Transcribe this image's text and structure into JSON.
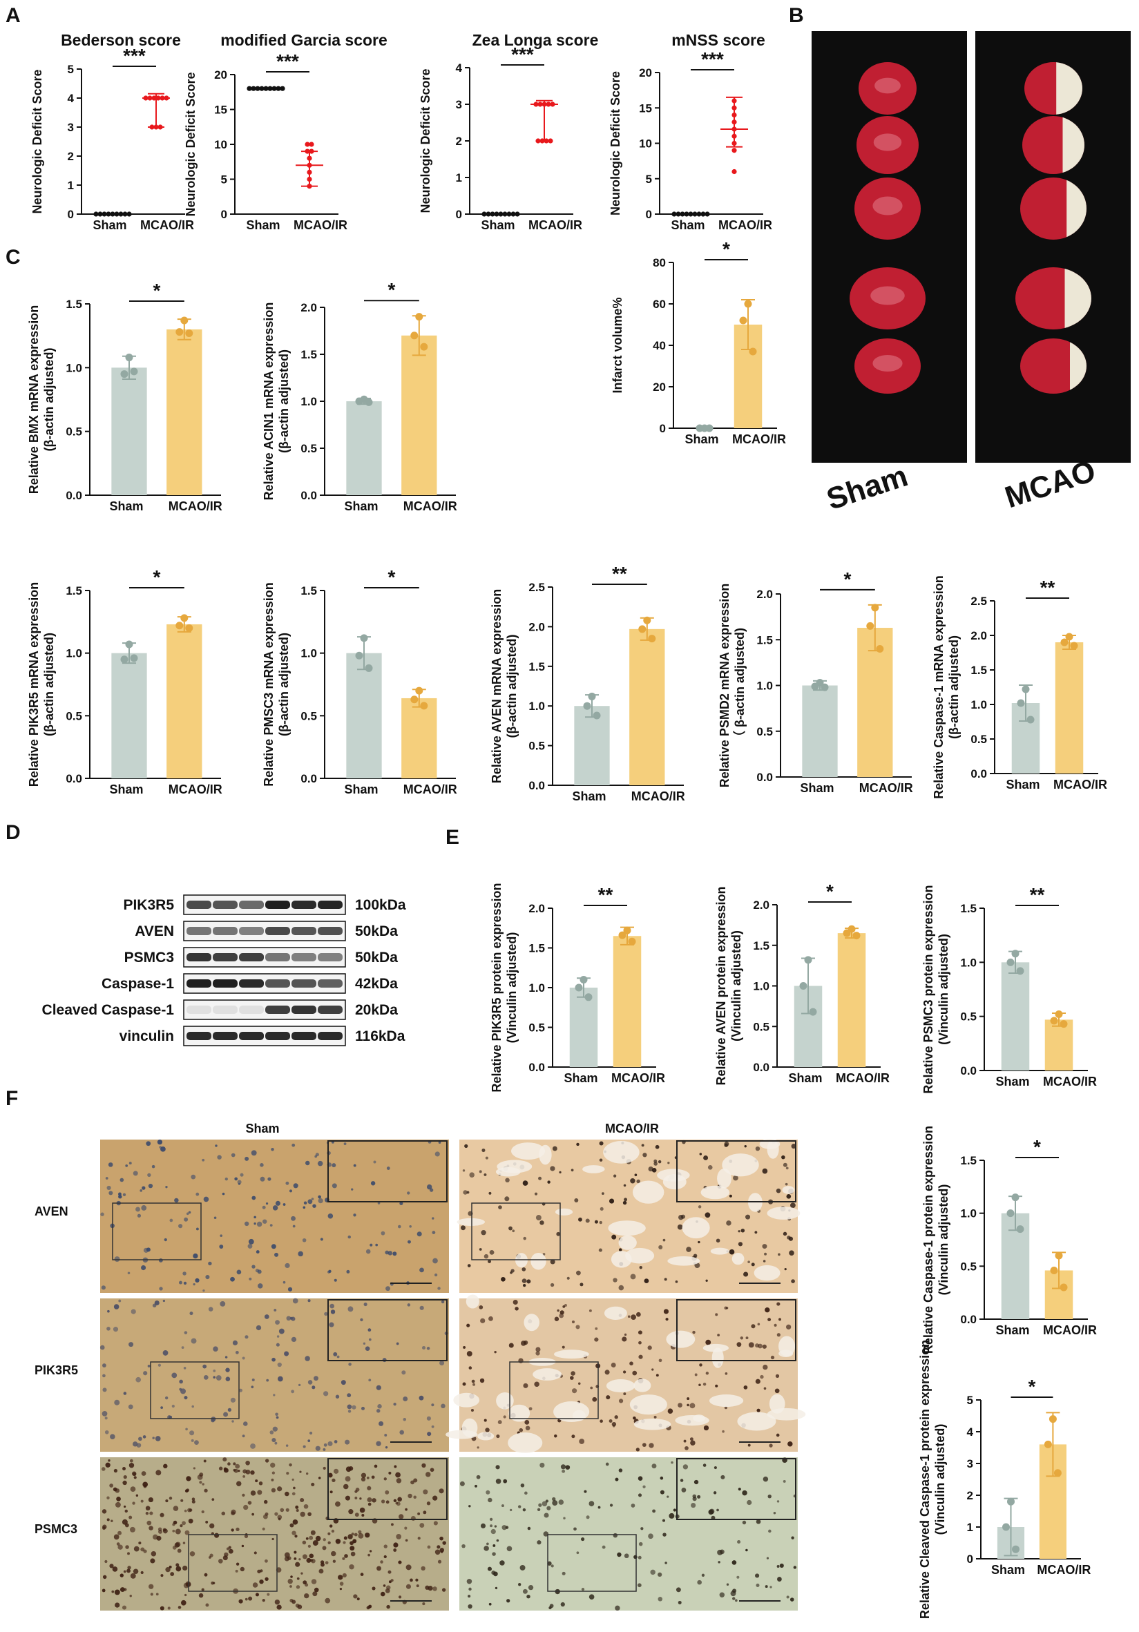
{
  "panel_labels": {
    "A": "A",
    "B": "B",
    "C": "C",
    "D": "D",
    "E": "E",
    "F": "F"
  },
  "colors": {
    "sham_bar": "#c5d3ce",
    "sham_dot": "#93a8a2",
    "mcao_bar": "#f5cf7c",
    "mcao_dot": "#e6a83d",
    "score_red": "#e8181c",
    "score_black": "#111111",
    "ttc_background": "#0d0d0d",
    "ttc_tissue": "#c01f32",
    "infarct_white": "#ece7d6"
  },
  "chart_data": [
    {
      "id": "bederson",
      "type": "scatter",
      "title": "Bederson score",
      "ylabel": "Neurologic Deficit Score",
      "categories": [
        "Sham",
        "MCAO/IR"
      ],
      "ylim": [
        0,
        5
      ],
      "yticks": [
        0,
        1,
        2,
        3,
        4,
        5
      ],
      "sig": "***",
      "series": [
        {
          "values": [
            0,
            0,
            0,
            0,
            0,
            0,
            0,
            0,
            0
          ],
          "median": 0,
          "range": [
            0,
            0
          ]
        },
        {
          "values": [
            4,
            4,
            4,
            4,
            4,
            4,
            3,
            3,
            3
          ],
          "median": 4,
          "range": [
            3,
            4.15
          ]
        }
      ]
    },
    {
      "id": "garcia",
      "type": "scatter",
      "title": "modified Garcia score",
      "ylabel": "Neurologic Deficit Score",
      "categories": [
        "Sham",
        "MCAO/IR"
      ],
      "ylim": [
        0,
        20
      ],
      "yticks": [
        0,
        5,
        10,
        15,
        20
      ],
      "sig": "***",
      "series": [
        {
          "values": [
            18,
            18,
            18,
            18,
            18,
            18,
            18,
            18,
            18
          ],
          "median": 18,
          "range": [
            18,
            18
          ]
        },
        {
          "values": [
            10,
            9,
            8,
            7,
            6,
            5,
            4,
            9,
            10
          ],
          "median": 7,
          "range": [
            4,
            9
          ]
        }
      ]
    },
    {
      "id": "zealonga",
      "type": "scatter",
      "title": "Zea Longa score",
      "ylabel": "Neurologic Deficit Score",
      "categories": [
        "Sham",
        "MCAO/IR"
      ],
      "ylim": [
        0,
        4
      ],
      "yticks": [
        0,
        1,
        2,
        3,
        4
      ],
      "sig": "***",
      "series": [
        {
          "values": [
            0,
            0,
            0,
            0,
            0,
            0,
            0,
            0,
            0
          ],
          "median": 0,
          "range": [
            0,
            0
          ]
        },
        {
          "values": [
            3,
            3,
            3,
            3,
            3,
            2,
            2,
            2,
            2
          ],
          "median": 3,
          "range": [
            2,
            3.1
          ]
        }
      ]
    },
    {
      "id": "mnss",
      "type": "scatter",
      "title": "mNSS score",
      "ylabel": "Neurologic Deficit Score",
      "categories": [
        "Sham",
        "MCAO/IR"
      ],
      "ylim": [
        0,
        20
      ],
      "yticks": [
        0,
        5,
        10,
        15,
        20
      ],
      "sig": "***",
      "series": [
        {
          "values": [
            0,
            0,
            0,
            0,
            0,
            0,
            0,
            0,
            0
          ],
          "median": 0,
          "range": [
            0,
            0
          ]
        },
        {
          "values": [
            16,
            15,
            14,
            13,
            12,
            11,
            10,
            9,
            6
          ],
          "median": 12,
          "range": [
            9.5,
            16.5
          ]
        }
      ]
    },
    {
      "id": "bmx",
      "type": "bar",
      "ylabel": "Relative BMX  mRNA expression",
      "ylabel2": "(β-actin adjusted)",
      "categories": [
        "Sham",
        "MCAO/IR"
      ],
      "ylim": [
        0,
        1.5
      ],
      "yticks": [
        "0.0",
        "0.5",
        "1.0",
        "1.5"
      ],
      "sig": "*",
      "series": [
        {
          "mean": 1.0,
          "err": 0.09,
          "points": [
            1.08,
            0.95,
            0.97
          ]
        },
        {
          "mean": 1.3,
          "err": 0.08,
          "points": [
            1.37,
            1.28,
            1.27
          ]
        }
      ]
    },
    {
      "id": "acin1",
      "type": "bar",
      "ylabel": "Relative ACIN1 mRNA expression",
      "ylabel2": "(β-actin adjusted)",
      "categories": [
        "Sham",
        "MCAO/IR"
      ],
      "ylim": [
        0,
        2.0
      ],
      "yticks": [
        "0.0",
        "0.5",
        "1.0",
        "1.5",
        "2.0"
      ],
      "sig": "*",
      "series": [
        {
          "mean": 1.0,
          "err": 0.03,
          "points": [
            1.02,
            1.0,
            0.99
          ]
        },
        {
          "mean": 1.7,
          "err": 0.21,
          "points": [
            1.9,
            1.7,
            1.58
          ]
        }
      ]
    },
    {
      "id": "infarct",
      "type": "bar",
      "ylabel": "Infarct volume%",
      "categories": [
        "Sham",
        "MCAO/IR"
      ],
      "ylim": [
        0,
        80
      ],
      "yticks": [
        "0",
        "20",
        "40",
        "60",
        "80"
      ],
      "sig": "*",
      "series": [
        {
          "mean": 0,
          "err": 0,
          "points": [
            0,
            0,
            0
          ]
        },
        {
          "mean": 50,
          "err": 12,
          "points": [
            60,
            52,
            37
          ]
        }
      ]
    },
    {
      "id": "pik3r5",
      "type": "bar",
      "ylabel": "Relative PIK3R5 mRNA expression",
      "ylabel2": "(β-actin adjusted)",
      "categories": [
        "Sham",
        "MCAO/IR"
      ],
      "ylim": [
        0,
        1.5
      ],
      "yticks": [
        "0.0",
        "0.5",
        "1.0",
        "1.5"
      ],
      "sig": "*",
      "series": [
        {
          "mean": 1.0,
          "err": 0.08,
          "points": [
            1.07,
            0.95,
            0.96
          ]
        },
        {
          "mean": 1.23,
          "err": 0.06,
          "points": [
            1.28,
            1.22,
            1.2
          ]
        }
      ]
    },
    {
      "id": "pmsc3",
      "type": "bar",
      "ylabel": "Relative PMSC3 mRNA expression",
      "ylabel2": "(β-actin adjusted)",
      "categories": [
        "Sham",
        "MCAO/IR"
      ],
      "ylim": [
        0,
        1.5
      ],
      "yticks": [
        "0.0",
        "0.5",
        "1.0",
        "1.5"
      ],
      "sig": "*",
      "series": [
        {
          "mean": 1.0,
          "err": 0.13,
          "points": [
            1.12,
            0.98,
            0.88
          ]
        },
        {
          "mean": 0.64,
          "err": 0.07,
          "points": [
            0.7,
            0.63,
            0.58
          ]
        }
      ]
    },
    {
      "id": "aven_mrna",
      "type": "bar",
      "ylabel": "Relative AVEN mRNA expression",
      "ylabel2": "(β-actin adjusted)",
      "categories": [
        "Sham",
        "MCAO/IR"
      ],
      "ylim": [
        0,
        2.5
      ],
      "yticks": [
        "0.0",
        "0.5",
        "1.0",
        "1.5",
        "2.0",
        "2.5"
      ],
      "sig": "**",
      "series": [
        {
          "mean": 1.0,
          "err": 0.14,
          "points": [
            1.12,
            1.0,
            0.88
          ]
        },
        {
          "mean": 1.97,
          "err": 0.14,
          "points": [
            2.08,
            1.97,
            1.85
          ]
        }
      ]
    },
    {
      "id": "psmd2",
      "type": "bar",
      "ylabel": "Relative PSMD2 mRNA expression",
      "ylabel2": "（ β-actin adjusted)",
      "categories": [
        "Sham",
        "MCAO/IR"
      ],
      "ylim": [
        0,
        2.0
      ],
      "yticks": [
        "0.0",
        "0.5",
        "1.0",
        "1.5",
        "2.0"
      ],
      "sig": "*",
      "series": [
        {
          "mean": 1.0,
          "err": 0.05,
          "points": [
            1.03,
            0.99,
            0.98
          ]
        },
        {
          "mean": 1.63,
          "err": 0.25,
          "points": [
            1.85,
            1.65,
            1.4
          ]
        }
      ]
    },
    {
      "id": "casp1_mrna",
      "type": "bar",
      "ylabel": "Relative Caspase-1 mRNA expression",
      "ylabel2": "(β-actin adjusted)",
      "categories": [
        "Sham",
        "MCAO/IR"
      ],
      "ylim": [
        0,
        2.5
      ],
      "yticks": [
        "0.0",
        "0.5",
        "1.0",
        "1.5",
        "2.0",
        "2.5"
      ],
      "sig": "**",
      "series": [
        {
          "mean": 1.02,
          "err": 0.26,
          "points": [
            1.22,
            1.02,
            0.78
          ]
        },
        {
          "mean": 1.9,
          "err": 0.1,
          "points": [
            1.98,
            1.9,
            1.85
          ]
        }
      ]
    },
    {
      "id": "pik3r5_prot",
      "type": "bar",
      "ylabel": "Relative PIK3R5 protein expression",
      "ylabel2": "(Vinculin adjusted)",
      "categories": [
        "Sham",
        "MCAO/IR"
      ],
      "ylim": [
        0,
        2.0
      ],
      "yticks": [
        "0.0",
        "0.5",
        "1.0",
        "1.5",
        "2.0"
      ],
      "sig": "**",
      "series": [
        {
          "mean": 1.0,
          "err": 0.12,
          "points": [
            1.1,
            1.0,
            0.88
          ]
        },
        {
          "mean": 1.65,
          "err": 0.11,
          "points": [
            1.72,
            1.66,
            1.58
          ]
        }
      ]
    },
    {
      "id": "aven_prot",
      "type": "bar",
      "ylabel": "Relative AVEN protein expression",
      "ylabel2": "(Vinculin adjusted)",
      "categories": [
        "Sham",
        "MCAO/IR"
      ],
      "ylim": [
        0,
        2.0
      ],
      "yticks": [
        "0.0",
        "0.5",
        "1.0",
        "1.5",
        "2.0"
      ],
      "sig": "*",
      "series": [
        {
          "mean": 1.0,
          "err": 0.34,
          "points": [
            1.32,
            1.0,
            0.68
          ]
        },
        {
          "mean": 1.65,
          "err": 0.06,
          "points": [
            1.7,
            1.65,
            1.62
          ]
        }
      ]
    },
    {
      "id": "psmc3_prot",
      "type": "bar",
      "ylabel": "Relative PSMC3 protein expression",
      "ylabel2": "(Vinculin adjusted)",
      "categories": [
        "Sham",
        "MCAO/IR"
      ],
      "ylim": [
        0,
        1.5
      ],
      "yticks": [
        "0.0",
        "0.5",
        "1.0",
        "1.5"
      ],
      "sig": "**",
      "series": [
        {
          "mean": 1.0,
          "err": 0.1,
          "points": [
            1.08,
            1.0,
            0.92
          ]
        },
        {
          "mean": 0.47,
          "err": 0.06,
          "points": [
            0.52,
            0.46,
            0.43
          ]
        }
      ]
    },
    {
      "id": "casp1_prot",
      "type": "bar",
      "ylabel": "Relative Caspase-1 protein expression",
      "ylabel2": "(Vinculin adjusted)",
      "categories": [
        "Sham",
        "MCAO/IR"
      ],
      "ylim": [
        0,
        1.5
      ],
      "yticks": [
        "0.0",
        "0.5",
        "1.0",
        "1.5"
      ],
      "sig": "*",
      "series": [
        {
          "mean": 1.0,
          "err": 0.16,
          "points": [
            1.15,
            1.0,
            0.85
          ]
        },
        {
          "mean": 0.46,
          "err": 0.17,
          "points": [
            0.6,
            0.46,
            0.3
          ]
        }
      ]
    },
    {
      "id": "cleaved_casp1_prot",
      "type": "bar",
      "ylabel": "Relative Cleaved Caspase-1 protein expression",
      "ylabel2": "(Vinculin adjusted)",
      "categories": [
        "Sham",
        "MCAO/IR"
      ],
      "ylim": [
        0,
        5
      ],
      "yticks": [
        "0",
        "1",
        "2",
        "3",
        "4",
        "5"
      ],
      "sig": "*",
      "series": [
        {
          "mean": 1.0,
          "err": 0.9,
          "points": [
            1.8,
            1.0,
            0.3
          ]
        },
        {
          "mean": 3.6,
          "err": 1.0,
          "points": [
            4.4,
            3.6,
            2.7
          ]
        }
      ]
    }
  ],
  "ttc": {
    "labels": [
      "Sham",
      "MCAO"
    ],
    "slices": 5,
    "infarct_fraction": [
      0.45,
      0.35,
      0.3,
      0.35,
      0.25
    ]
  },
  "western": {
    "lanes": 6,
    "rows": [
      {
        "protein": "PIK3R5",
        "kda": "100kDa",
        "intensity": [
          0.75,
          0.7,
          0.6,
          0.95,
          0.9,
          0.92
        ]
      },
      {
        "protein": "AVEN",
        "kda": "50kDa",
        "intensity": [
          0.55,
          0.55,
          0.5,
          0.75,
          0.7,
          0.72
        ]
      },
      {
        "protein": "PSMC3",
        "kda": "50kDa",
        "intensity": [
          0.85,
          0.8,
          0.8,
          0.55,
          0.5,
          0.5
        ]
      },
      {
        "protein": "Caspase-1",
        "kda": "42kDa",
        "intensity": [
          0.95,
          0.95,
          0.9,
          0.7,
          0.7,
          0.65
        ]
      },
      {
        "protein": "Cleaved Caspase-1",
        "kda": "20kDa",
        "intensity": [
          0.05,
          0.05,
          0.05,
          0.8,
          0.85,
          0.8
        ]
      },
      {
        "protein": "vinculin",
        "kda": "116kDa",
        "intensity": [
          0.9,
          0.9,
          0.9,
          0.9,
          0.9,
          0.9
        ]
      }
    ]
  },
  "ihc": {
    "columns": [
      "Sham",
      "MCAO/IR"
    ],
    "rows": [
      "AVEN",
      "PIK3R5",
      "PSMC3"
    ]
  }
}
